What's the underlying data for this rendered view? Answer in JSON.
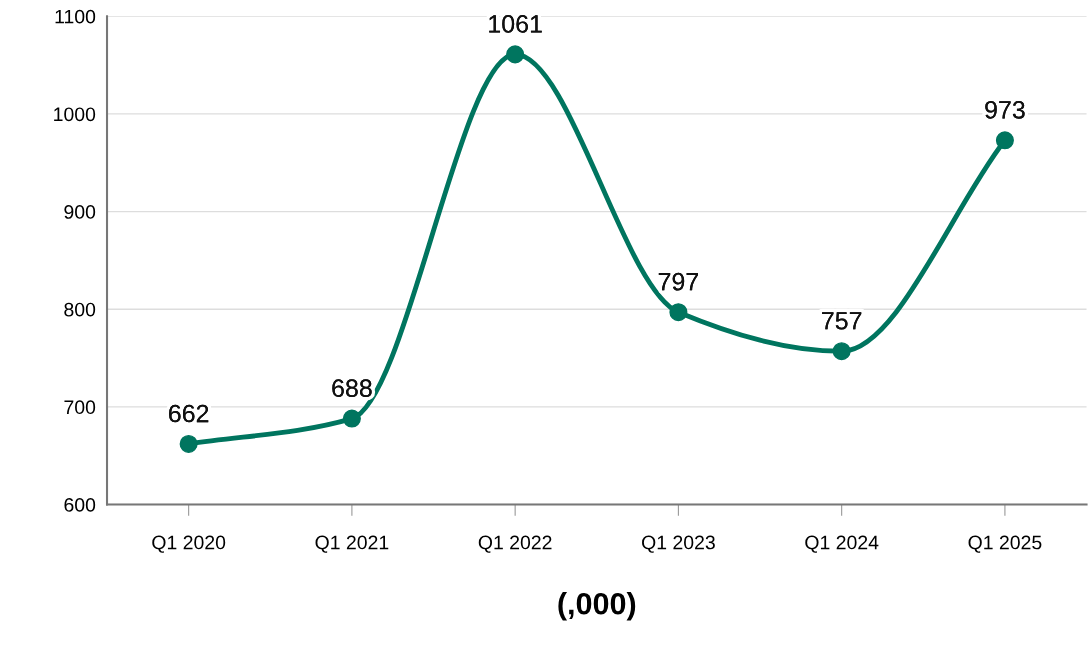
{
  "chart_data": {
    "type": "line",
    "xlabel": "(,000)",
    "categories": [
      "Q1 2020",
      "Q1 2021",
      "Q1 2022",
      "Q1 2023",
      "Q1 2024",
      "Q1 2025"
    ],
    "values": [
      662,
      688,
      1061,
      797,
      757,
      973
    ],
    "color": "#00755f",
    "ylim": [
      600,
      1100
    ],
    "yticks": [
      600,
      700,
      800,
      900,
      1000,
      1100
    ],
    "grid": "y",
    "marker": "circle",
    "line_style": "solid",
    "data_labels": true
  }
}
